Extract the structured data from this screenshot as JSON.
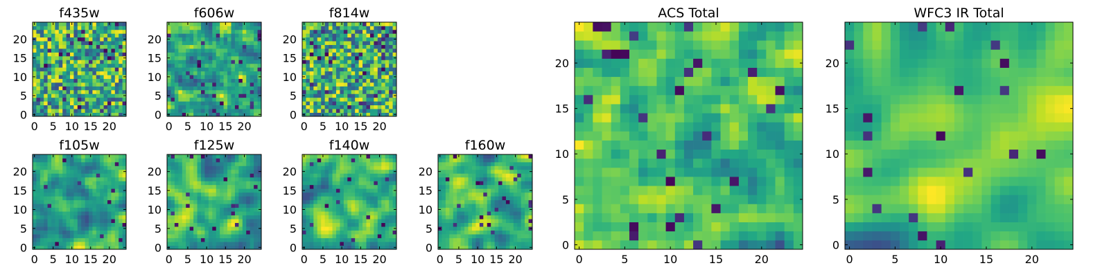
{
  "chart_data": {
    "type": "heatmap",
    "colormap": "viridis",
    "panels": [
      {
        "id": "f435w",
        "title": "f435w",
        "xticks": [
          "0",
          "5",
          "10",
          "15",
          "20"
        ],
        "yticks": [
          "0",
          "5",
          "10",
          "15",
          "20"
        ],
        "seed": 11,
        "smoothness": 0,
        "dark_fraction": 0.05
      },
      {
        "id": "f606w",
        "title": "f606w",
        "xticks": [
          "0",
          "5",
          "10",
          "15",
          "20"
        ],
        "yticks": [
          "0",
          "5",
          "10",
          "15",
          "20"
        ],
        "seed": 23,
        "smoothness": 1,
        "dark_fraction": 0.05
      },
      {
        "id": "f814w",
        "title": "f814w",
        "xticks": [
          "0",
          "5",
          "10",
          "15",
          "20"
        ],
        "yticks": [
          "0",
          "5",
          "10",
          "15",
          "20"
        ],
        "seed": 37,
        "smoothness": 0,
        "dark_fraction": 0.06
      },
      {
        "id": "f105w",
        "title": "f105w",
        "xticks": [
          "0",
          "5",
          "10",
          "15",
          "20"
        ],
        "yticks": [
          "0",
          "5",
          "10",
          "15",
          "20"
        ],
        "seed": 41,
        "smoothness": 2,
        "dark_fraction": 0.02
      },
      {
        "id": "f125w",
        "title": "f125w",
        "xticks": [
          "0",
          "5",
          "10",
          "15",
          "20"
        ],
        "yticks": [
          "0",
          "5",
          "10",
          "15",
          "20"
        ],
        "seed": 53,
        "smoothness": 2,
        "dark_fraction": 0.03
      },
      {
        "id": "f140w",
        "title": "f140w",
        "xticks": [
          "0",
          "5",
          "10",
          "15",
          "20"
        ],
        "yticks": [
          "0",
          "5",
          "10",
          "15",
          "20"
        ],
        "seed": 67,
        "smoothness": 2,
        "dark_fraction": 0.03
      },
      {
        "id": "f160w",
        "title": "f160w",
        "xticks": [
          "0",
          "5",
          "10",
          "15",
          "20"
        ],
        "yticks": [
          "0",
          "5",
          "10",
          "15",
          "20"
        ],
        "seed": 71,
        "smoothness": 2,
        "dark_fraction": 0.04
      },
      {
        "id": "acs_total",
        "title": "ACS Total",
        "xticks": [
          "0",
          "5",
          "10",
          "15",
          "20"
        ],
        "yticks": [
          "0",
          "5",
          "10",
          "15",
          "20"
        ],
        "seed": 83,
        "smoothness": 1,
        "dark_fraction": 0.04
      },
      {
        "id": "wfc3_ir_total",
        "title": "WFC3 IR Total",
        "xticks": [
          "0",
          "5",
          "10",
          "15",
          "20"
        ],
        "yticks": [
          "0",
          "5",
          "10",
          "15",
          "20"
        ],
        "seed": 97,
        "smoothness": 3,
        "dark_fraction": 0.03
      }
    ],
    "grid_size": 25,
    "x_range": [
      0,
      24
    ],
    "y_range": [
      0,
      24
    ]
  }
}
